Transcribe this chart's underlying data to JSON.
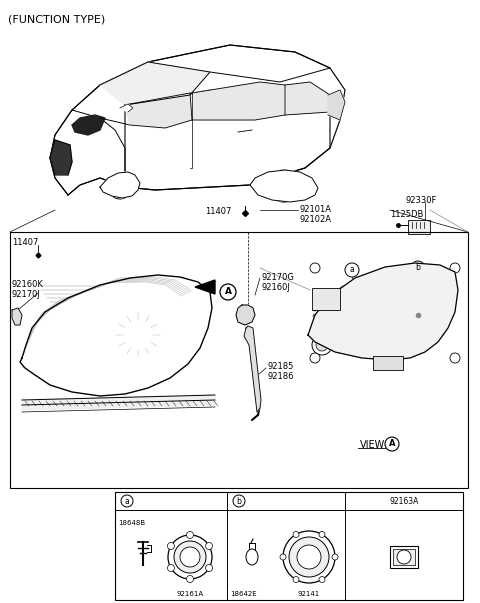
{
  "bg_color": "#ffffff",
  "line_color": "#000000",
  "text_color": "#000000",
  "gray_color": "#666666",
  "light_gray": "#cccccc",
  "labels": {
    "title": "(FUNCTION TYPE)",
    "11407": "11407",
    "92101A_92102A": "92101A\n92102A",
    "92330F": "92330F",
    "1125DB": "1125DB",
    "92170G_92160J": "92170G\n92160J",
    "92160K_92170J": "92160K\n92170J",
    "92185_92186": "92185\n92186",
    "view_A": "VIEW",
    "A": "A",
    "a": "a",
    "b": "b",
    "18648B": "18648B",
    "92161A": "92161A",
    "18642E": "18642E",
    "92141": "92141",
    "92163A": "92163A"
  },
  "font_sizes": {
    "title": 8.0,
    "label": 6.0,
    "small": 5.5,
    "view": 7.0
  }
}
